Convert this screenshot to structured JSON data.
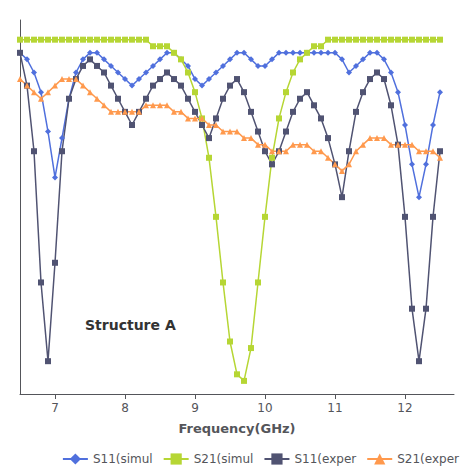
{
  "chart_data": {
    "type": "line",
    "xlabel": "Frequency(GHz)",
    "annotation": "Structure A",
    "xlim": [
      6.5,
      12.7
    ],
    "ylim": [
      -55,
      2
    ],
    "xticks": [
      7,
      8,
      9,
      10,
      11,
      12
    ],
    "yticks": [],
    "tick_labels": "x",
    "grid": false,
    "legend": "lower right",
    "x": [
      6.5,
      6.6,
      6.7,
      6.8,
      6.9,
      7.0,
      7.1,
      7.2,
      7.3,
      7.4,
      7.5,
      7.6,
      7.7,
      7.8,
      7.9,
      8.0,
      8.1,
      8.2,
      8.3,
      8.4,
      8.5,
      8.6,
      8.7,
      8.8,
      8.9,
      9.0,
      9.1,
      9.2,
      9.3,
      9.4,
      9.5,
      9.6,
      9.7,
      9.8,
      9.9,
      10.0,
      10.1,
      10.2,
      10.3,
      10.4,
      10.5,
      10.6,
      10.7,
      10.8,
      10.9,
      11.0,
      11.1,
      11.2,
      11.3,
      11.4,
      11.5,
      11.6,
      11.7,
      11.8,
      11.9,
      12.0,
      12.1,
      12.2,
      12.3,
      12.4,
      12.5
    ],
    "series": [
      {
        "name": "S11(simul",
        "marker": "diamond",
        "values": [
          -3,
          -4,
          -6,
          -9,
          -15,
          -22,
          -16,
          -10,
          -6,
          -4,
          -3,
          -3,
          -4,
          -5,
          -6,
          -7,
          -8,
          -7,
          -6,
          -5,
          -4,
          -3,
          -3,
          -4,
          -5,
          -7,
          -8,
          -7,
          -6,
          -5,
          -4,
          -3,
          -3,
          -4,
          -5,
          -5,
          -4,
          -3,
          -3,
          -3,
          -3,
          -3,
          -3,
          -3,
          -3,
          -3,
          -4,
          -6,
          -5,
          -4,
          -3,
          -3,
          -4,
          -6,
          -9,
          -14,
          -20,
          -25,
          -20,
          -14,
          -9
        ]
      },
      {
        "name": "S21(simul",
        "marker": "square",
        "values": [
          -1,
          -1,
          -1,
          -1,
          -1,
          -1,
          -1,
          -1,
          -1,
          -1,
          -1,
          -1,
          -1,
          -1,
          -1,
          -1,
          -1,
          -1,
          -1,
          -2,
          -2,
          -2,
          -3,
          -4,
          -6,
          -9,
          -13,
          -19,
          -28,
          -38,
          -47,
          -52,
          -53,
          -48,
          -38,
          -28,
          -19,
          -13,
          -9,
          -6,
          -4,
          -3,
          -2,
          -2,
          -1,
          -1,
          -1,
          -1,
          -1,
          -1,
          -1,
          -1,
          -1,
          -1,
          -1,
          -1,
          -1,
          -1,
          -1,
          -1,
          -1
        ]
      },
      {
        "name": "S11(exper",
        "marker": "square",
        "values": [
          -3,
          -8,
          -18,
          -38,
          -50,
          -35,
          -18,
          -10,
          -7,
          -5,
          -4,
          -5,
          -6,
          -8,
          -10,
          -12,
          -14,
          -12,
          -10,
          -8,
          -7,
          -6,
          -7,
          -8,
          -10,
          -12,
          -14,
          -16,
          -13,
          -10,
          -8,
          -7,
          -9,
          -12,
          -15,
          -18,
          -20,
          -18,
          -15,
          -12,
          -10,
          -9,
          -11,
          -13,
          -16,
          -20,
          -25,
          -18,
          -12,
          -9,
          -7,
          -6,
          -7,
          -11,
          -17,
          -28,
          -42,
          -50,
          -42,
          -28,
          -18
        ]
      },
      {
        "name": "S21(exper",
        "marker": "triangle",
        "values": [
          -7,
          -8,
          -9,
          -10,
          -9,
          -8,
          -7,
          -7,
          -7,
          -8,
          -9,
          -10,
          -11,
          -12,
          -12,
          -12,
          -12,
          -12,
          -11,
          -11,
          -11,
          -11,
          -12,
          -12,
          -13,
          -13,
          -13,
          -14,
          -14,
          -15,
          -15,
          -15,
          -16,
          -16,
          -17,
          -17,
          -18,
          -18,
          -18,
          -17,
          -17,
          -17,
          -18,
          -18,
          -19,
          -20,
          -21,
          -20,
          -18,
          -17,
          -16,
          -16,
          -16,
          -17,
          -17,
          -17,
          -17,
          -18,
          -18,
          -18,
          -19
        ]
      }
    ]
  }
}
